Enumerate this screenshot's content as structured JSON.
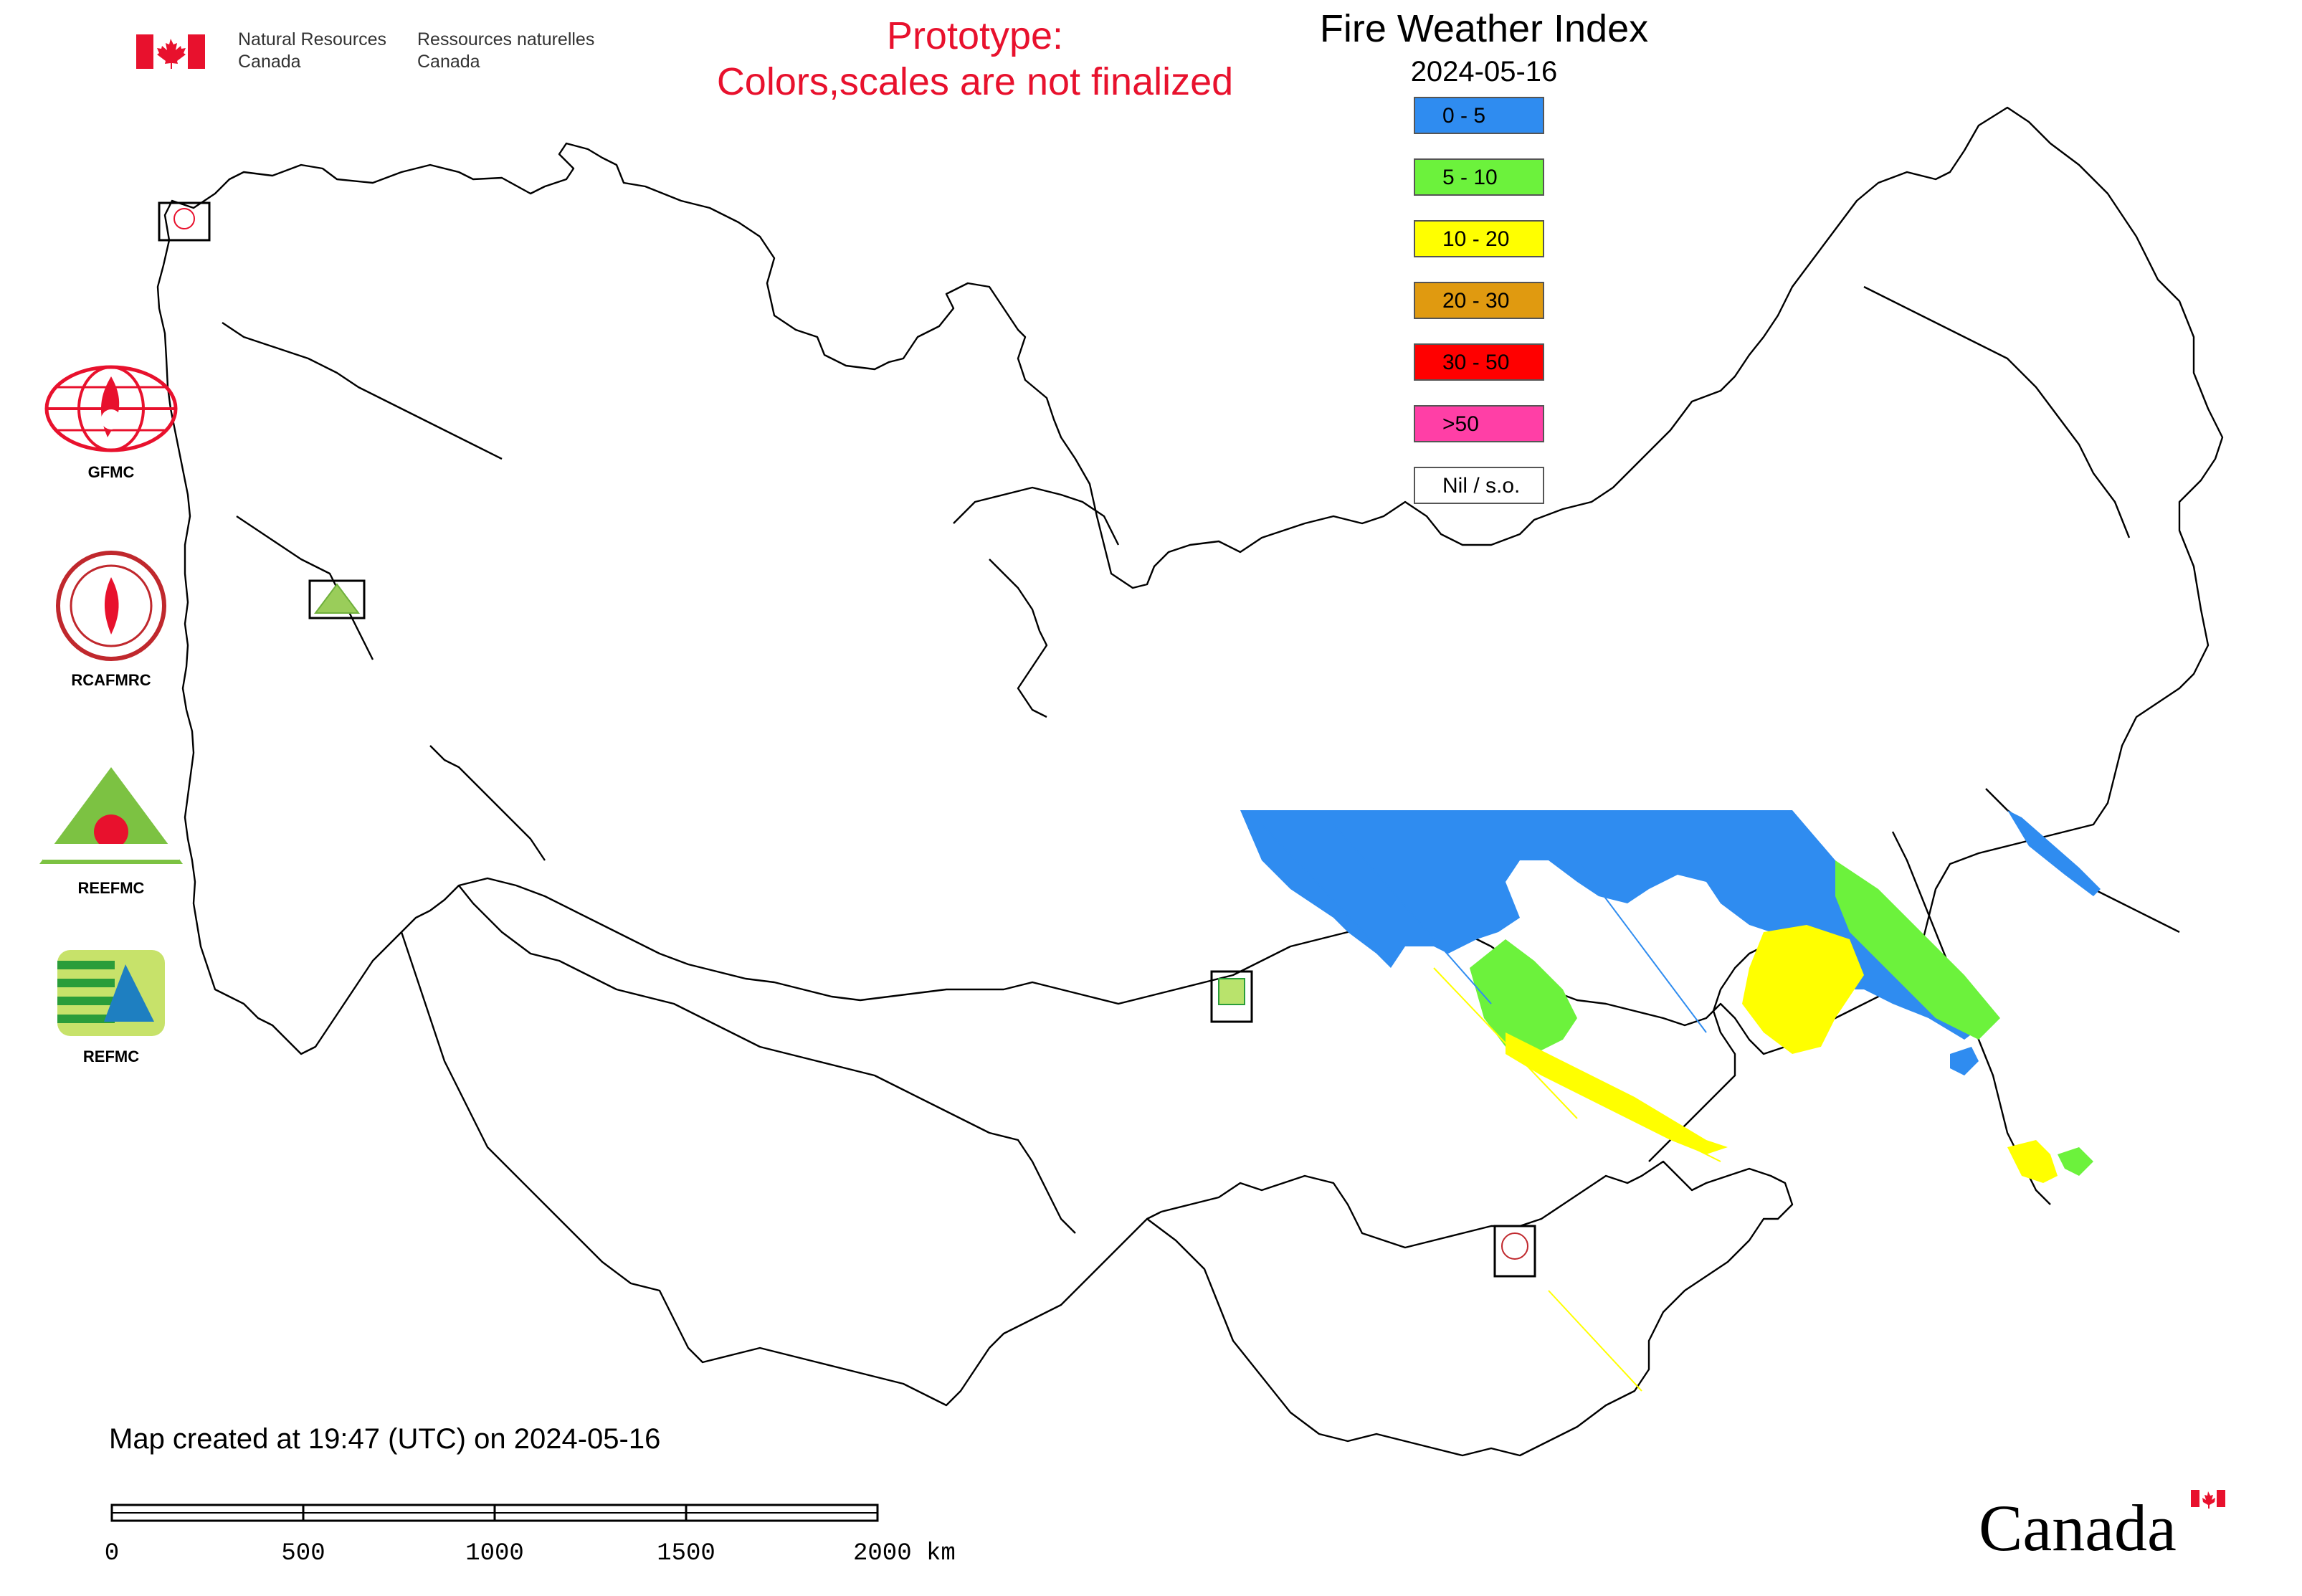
{
  "header": {
    "nrcan_en_line1": "Natural Resources",
    "nrcan_en_line2": "Canada",
    "nrcan_fr_line1": "Ressources naturelles",
    "nrcan_fr_line2": "Canada",
    "prototype_line1": "Prototype:",
    "prototype_line2": "Colors,scales are not finalized"
  },
  "map": {
    "title": "Fire Weather Index",
    "date": "2024-05-16",
    "created_note": "Map created at 19:47 (UTC) on 2024-05-16"
  },
  "legend": [
    {
      "label": "0 - 5",
      "color": "#2f8cf0"
    },
    {
      "label": "5 - 10",
      "color": "#6cf23c"
    },
    {
      "label": "10 - 20",
      "color": "#ffff00"
    },
    {
      "label": "20 - 30",
      "color": "#e09a10"
    },
    {
      "label": "30 - 50",
      "color": "#ff0000"
    },
    {
      "label": ">50",
      "color": "#ff3fa6"
    },
    {
      "label": "Nil / s.o.",
      "color": "#ffffff"
    }
  ],
  "logos": [
    {
      "caption": "GFMC"
    },
    {
      "caption": "RCAFMRC"
    },
    {
      "caption": "REEFMC"
    },
    {
      "caption": "REFMC"
    }
  ],
  "scale": {
    "ticks": [
      "0",
      "500",
      "1000",
      "1500",
      "2000 km"
    ]
  },
  "footer": {
    "wordmark": "Canada"
  },
  "colors": {
    "prototype_text": "#e8112d",
    "border_line": "#000000",
    "flag_red": "#e8112d"
  }
}
